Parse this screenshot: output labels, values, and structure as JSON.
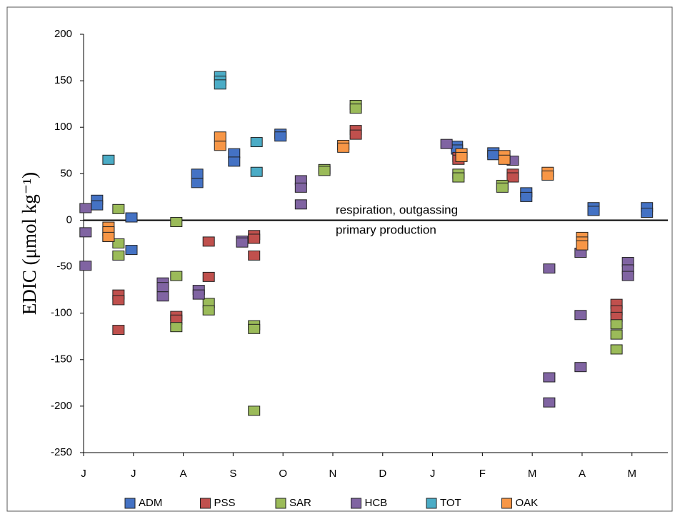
{
  "chart_data": {
    "type": "scatter",
    "y_label": "EDIC (μmol kg⁻¹)",
    "annotations": [
      "respiration, outgassing",
      "primary production"
    ],
    "hline": 0,
    "xlim": [
      0,
      11.72
    ],
    "xticks": [
      {
        "value": 0,
        "label": "J"
      },
      {
        "value": 1,
        "label": "J"
      },
      {
        "value": 2,
        "label": "A"
      },
      {
        "value": 3,
        "label": "S"
      },
      {
        "value": 4,
        "label": "O"
      },
      {
        "value": 5,
        "label": "N"
      },
      {
        "value": 6,
        "label": "D"
      },
      {
        "value": 7,
        "label": "J"
      },
      {
        "value": 8,
        "label": "F"
      },
      {
        "value": 9,
        "label": "M"
      },
      {
        "value": 10,
        "label": "A"
      },
      {
        "value": 11,
        "label": "M"
      }
    ],
    "ylim": [
      -250,
      200
    ],
    "yticks": [
      -250,
      -200,
      -150,
      -100,
      -50,
      0,
      50,
      100,
      150,
      200
    ],
    "series": [
      {
        "name": "ADM",
        "color": "#4472c4",
        "x": [
          0.27,
          0.27,
          0.96,
          0.96,
          2.28,
          2.28,
          3.02,
          3.02,
          3.95,
          3.95,
          7.49,
          7.49,
          8.22,
          8.22,
          8.88,
          8.88,
          10.23,
          10.23,
          11.3,
          11.3
        ],
        "values": [
          22,
          16,
          3,
          -32,
          50,
          40,
          72,
          63,
          93,
          90,
          80,
          76,
          73,
          70,
          30,
          25,
          14,
          10,
          14,
          8
        ]
      },
      {
        "name": "PSS",
        "color": "#c0504d",
        "x": [
          0.7,
          0.7,
          0.7,
          1.86,
          1.86,
          2.51,
          2.51,
          3.42,
          3.42,
          3.42,
          5.46,
          5.46,
          7.52,
          7.52,
          8.61,
          8.61,
          10.69,
          10.69,
          10.69
        ],
        "values": [
          -80,
          -86,
          -118,
          -103,
          -107,
          -23,
          -61,
          -16,
          -20,
          -38,
          97,
          92,
          68,
          65,
          50,
          46,
          -90,
          -97,
          -104
        ]
      },
      {
        "name": "SAR",
        "color": "#9bbb59",
        "x": [
          0.7,
          0.7,
          0.7,
          1.86,
          1.86,
          1.86,
          2.51,
          2.51,
          3.42,
          3.42,
          3.42,
          4.83,
          4.83,
          5.46,
          5.46,
          7.52,
          7.52,
          8.4,
          8.4,
          10.69,
          10.69,
          10.69
        ],
        "values": [
          12,
          -25,
          -38,
          -2,
          -60,
          -115,
          -89,
          -97,
          -113,
          -117,
          -205,
          55,
          53,
          124,
          120,
          50,
          46,
          38,
          35,
          -112,
          -123,
          -139
        ]
      },
      {
        "name": "HCB",
        "color": "#8064a2",
        "x": [
          0.04,
          0.04,
          0.04,
          1.59,
          1.59,
          1.59,
          2.31,
          2.31,
          3.18,
          3.18,
          4.36,
          4.36,
          4.36,
          7.28,
          8.61,
          9.34,
          9.34,
          9.34,
          9.97,
          9.97,
          9.97,
          10.92,
          10.92,
          10.92
        ],
        "values": [
          13,
          -13,
          -49,
          -67,
          -72,
          -82,
          -75,
          -80,
          -22,
          -24,
          43,
          35,
          17,
          82,
          64,
          -52,
          -169,
          -196,
          -35,
          -102,
          -158,
          -45,
          -53,
          -60
        ]
      },
      {
        "name": "TOT",
        "color": "#4bacc6",
        "x": [
          0.5,
          0.5,
          2.74,
          2.74,
          2.74,
          3.47,
          3.47
        ],
        "values": [
          65,
          -18,
          155,
          150,
          146,
          84,
          52
        ]
      },
      {
        "name": "OAK",
        "color": "#f79646",
        "x": [
          0.5,
          0.5,
          0.5,
          2.74,
          2.74,
          5.21,
          5.21,
          7.58,
          7.58,
          8.44,
          8.44,
          9.31,
          9.31,
          10.0,
          10.0,
          10.0
        ],
        "values": [
          -7,
          -12,
          -18,
          90,
          80,
          81,
          78,
          72,
          68,
          70,
          65,
          52,
          48,
          -18,
          -23,
          -27
        ]
      }
    ]
  }
}
